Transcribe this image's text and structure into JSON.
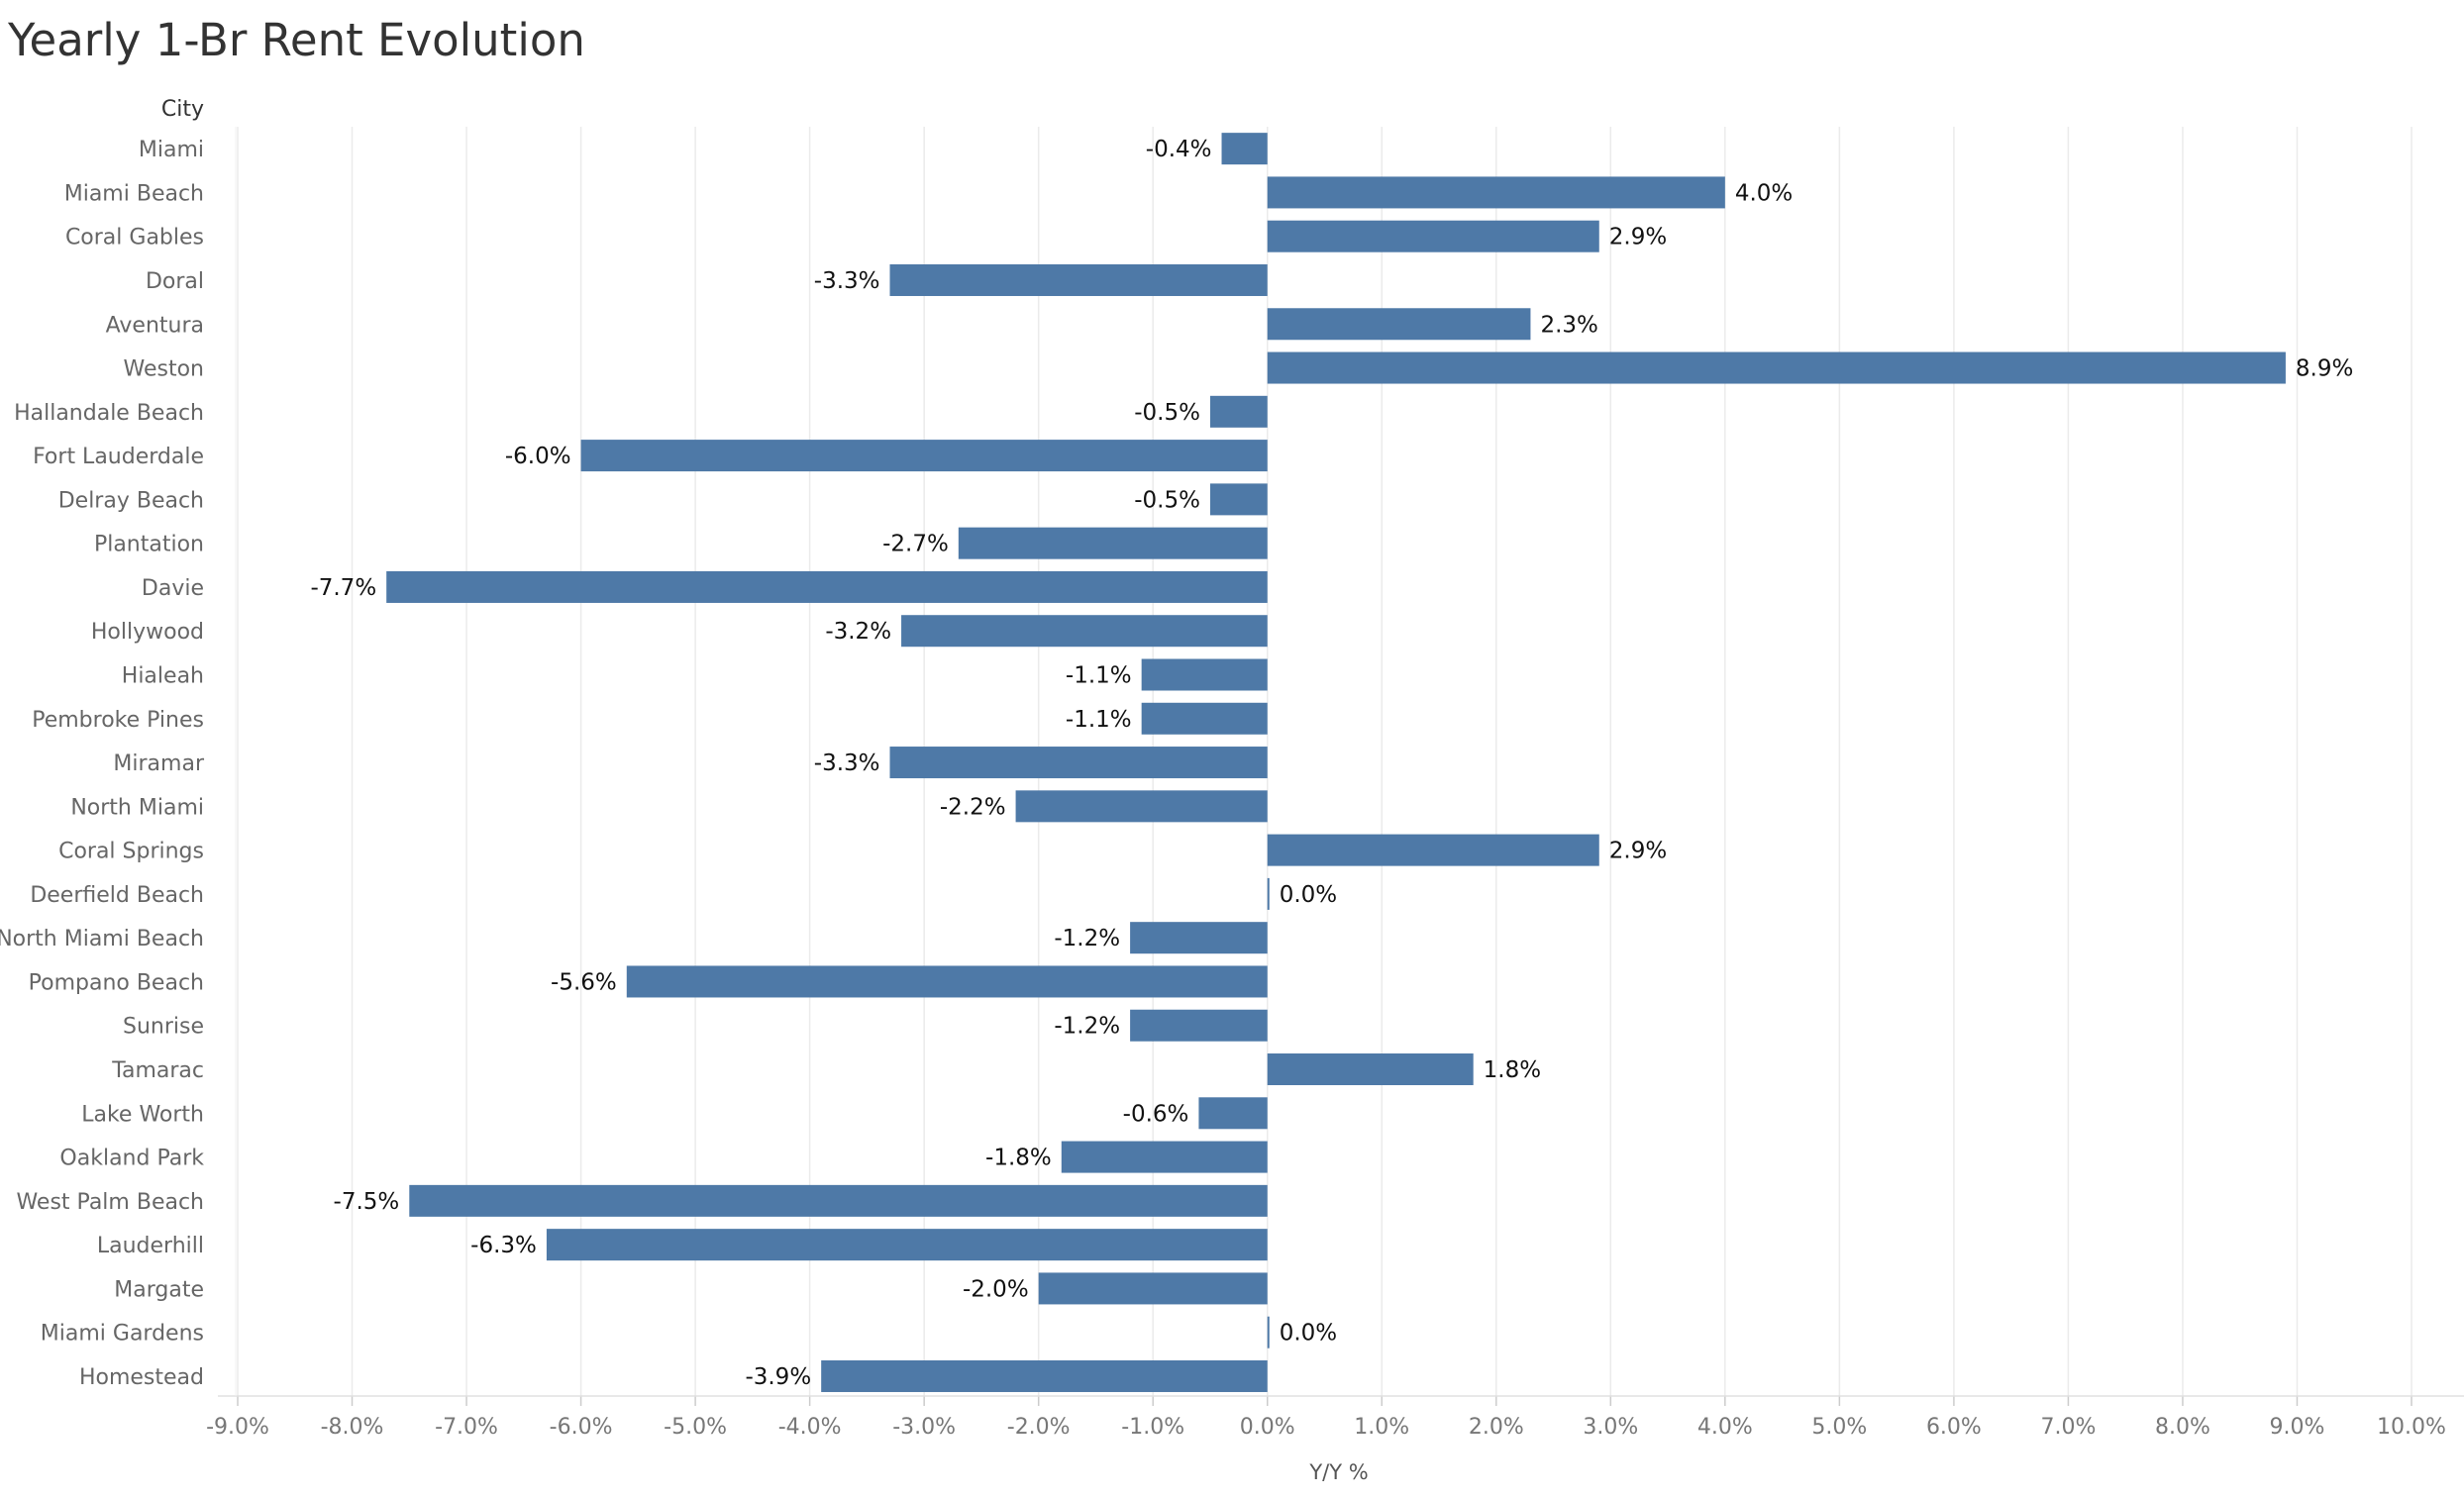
{
  "chart_data": {
    "type": "bar",
    "orientation": "horizontal",
    "title": "Yearly 1-Br Rent Evolution",
    "row_header": "City",
    "xlabel": "Y/Y %",
    "xlim": [
      -9,
      10
    ],
    "xticks": [
      "-9.0%",
      "-8.0%",
      "-7.0%",
      "-6.0%",
      "-5.0%",
      "-4.0%",
      "-3.0%",
      "-2.0%",
      "-1.0%",
      "0.0%",
      "1.0%",
      "2.0%",
      "3.0%",
      "4.0%",
      "5.0%",
      "6.0%",
      "7.0%",
      "8.0%",
      "9.0%",
      "10.0%"
    ],
    "grid": "vertical",
    "bar_color": "#4e79a7",
    "categories": [
      "Miami",
      "Miami Beach",
      "Coral Gables",
      "Doral",
      "Aventura",
      "Weston",
      "Hallandale Beach",
      "Fort Lauderdale",
      "Delray Beach",
      "Plantation",
      "Davie",
      "Hollywood",
      "Hialeah",
      "Pembroke Pines",
      "Miramar",
      "North Miami",
      "Coral Springs",
      "Deerfield Beach",
      "North Miami Beach",
      "Pompano Beach",
      "Sunrise",
      "Tamarac",
      "Lake Worth",
      "Oakland Park",
      "West Palm Beach",
      "Lauderhill",
      "Margate",
      "Miami Gardens",
      "Homestead"
    ],
    "values": [
      -0.4,
      4.0,
      2.9,
      -3.3,
      2.3,
      8.9,
      -0.5,
      -6.0,
      -0.5,
      -2.7,
      -7.7,
      -3.2,
      -1.1,
      -1.1,
      -3.3,
      -2.2,
      2.9,
      0.0,
      -1.2,
      -5.6,
      -1.2,
      1.8,
      -0.6,
      -1.8,
      -7.5,
      -6.3,
      -2.0,
      0.0,
      -3.9
    ],
    "labels": [
      "-0.4%",
      "4.0%",
      "2.9%",
      "-3.3%",
      "2.3%",
      "8.9%",
      "-0.5%",
      "-6.0%",
      "-0.5%",
      "-2.7%",
      "-7.7%",
      "-3.2%",
      "-1.1%",
      "-1.1%",
      "-3.3%",
      "-2.2%",
      "2.9%",
      "0.0%",
      "-1.2%",
      "-5.6%",
      "-1.2%",
      "1.8%",
      "-0.6%",
      "-1.8%",
      "-7.5%",
      "-6.3%",
      "-2.0%",
      "0.0%",
      "-3.9%"
    ]
  }
}
